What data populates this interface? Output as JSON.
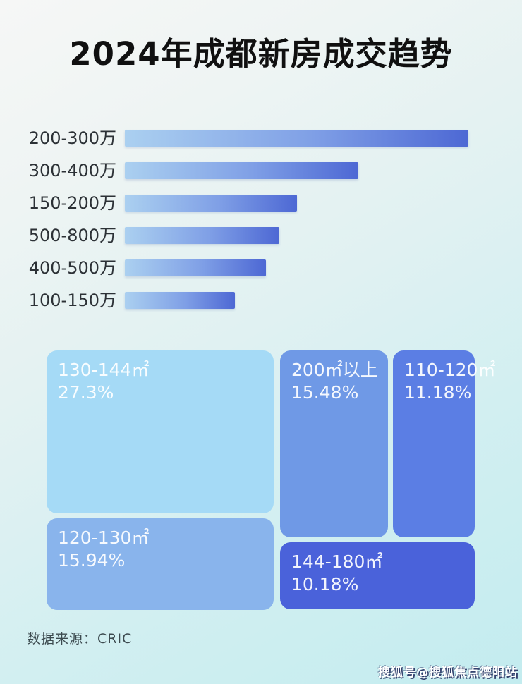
{
  "title": "2024年成都新房成交趋势",
  "source_label": "数据来源：CRIC",
  "watermark": "搜狐号@搜狐焦点德阳站",
  "colors": {
    "bar_gradient_start": "#abd0f0",
    "bar_gradient_end": "#4d68d4",
    "background_top_left": "#f6f7f6",
    "background_bottom_right": "#c3ecef",
    "title_text": "#101010",
    "bar_label_text": "#2c3136",
    "treemap_text": "#ffffff"
  },
  "chart_data": [
    {
      "type": "bar",
      "orientation": "horizontal",
      "title": "2024年成都新房成交趋势",
      "categories": [
        "200-300万",
        "300-400万",
        "150-200万",
        "500-800万",
        "400-500万",
        "100-150万"
      ],
      "values": [
        100,
        68,
        50,
        45,
        41,
        32
      ],
      "value_note": "no numeric labels shown in image; values are bar lengths estimated as % of the longest bar",
      "xlabel": "",
      "ylabel": "",
      "grid": false,
      "legend": false,
      "bar_gradient": [
        "#abd0f0",
        "#4d68d4"
      ]
    },
    {
      "type": "treemap",
      "title": "",
      "items": [
        {
          "label": "130-144㎡",
          "value": 27.3,
          "pct_label": "27.3%",
          "color": "#a5daf6"
        },
        {
          "label": "200㎡以上",
          "value": 15.48,
          "pct_label": "15.48%",
          "color": "#6f99e6"
        },
        {
          "label": "110-120㎡",
          "value": 11.18,
          "pct_label": "11.18%",
          "color": "#5b7ee4"
        },
        {
          "label": "120-130㎡",
          "value": 15.94,
          "pct_label": "15.94%",
          "color": "#89b4ec"
        },
        {
          "label": "144-180㎡",
          "value": 10.18,
          "pct_label": "10.18%",
          "color": "#4a62da"
        }
      ],
      "source": "数据来源：CRIC",
      "legend": false
    }
  ]
}
